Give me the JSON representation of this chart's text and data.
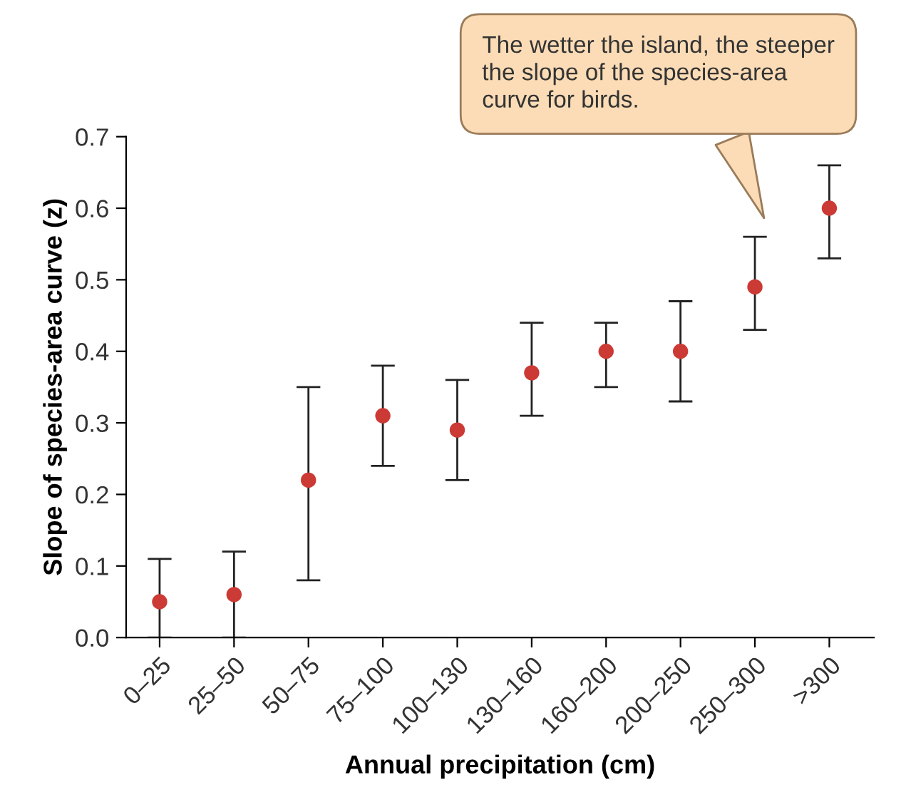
{
  "chart_data": {
    "type": "scatter",
    "xlabel": "Annual precipitation (cm)",
    "ylabel": "Slope of species-area curve (z)",
    "categories": [
      "0–25",
      "25–50",
      "50–75",
      "75–100",
      "100–130",
      "130–160",
      "160–200",
      "200–250",
      "250–300",
      ">300"
    ],
    "values": [
      0.05,
      0.06,
      0.22,
      0.31,
      0.29,
      0.37,
      0.4,
      0.4,
      0.49,
      0.6
    ],
    "errors": [
      [
        0.0,
        0.11
      ],
      [
        0.0,
        0.12
      ],
      [
        0.08,
        0.35
      ],
      [
        0.24,
        0.38
      ],
      [
        0.22,
        0.36
      ],
      [
        0.31,
        0.44
      ],
      [
        0.35,
        0.44
      ],
      [
        0.33,
        0.47
      ],
      [
        0.43,
        0.56
      ],
      [
        0.53,
        0.66
      ]
    ],
    "color": "#cc3a35",
    "marker": "circle",
    "grid": false,
    "ylim": [
      0,
      0.7
    ],
    "yticks": [
      {
        "value": 0,
        "label": "0.0"
      },
      {
        "value": 0.1,
        "label": "0.1"
      },
      {
        "value": 0.2,
        "label": "0.2"
      },
      {
        "value": 0.3,
        "label": "0.3"
      },
      {
        "value": 0.4,
        "label": "0.4"
      },
      {
        "value": 0.5,
        "label": "0.5"
      },
      {
        "value": 0.6,
        "label": "0.6"
      },
      {
        "value": 0.7,
        "label": "0.7"
      }
    ],
    "annotations": [
      "The wetter the island, the steeper\nthe slope of the species-area\ncurve for birds."
    ]
  }
}
